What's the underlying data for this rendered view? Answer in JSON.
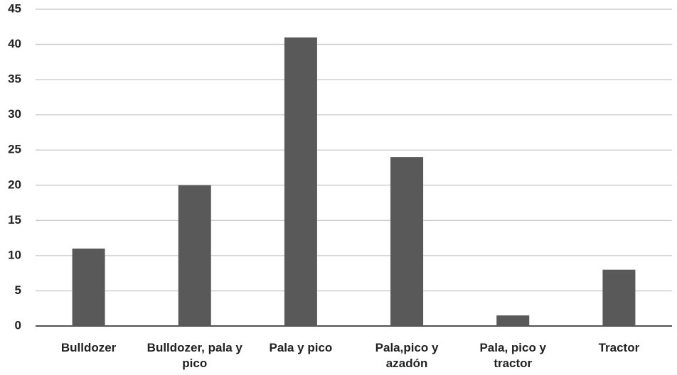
{
  "chart_data": {
    "type": "bar",
    "categories": [
      "Bulldozer",
      "Bulldozer, pala y pico",
      "Pala y pico",
      "Pala,pico y azadón",
      "Pala, pico y tractor",
      "Tractor"
    ],
    "values": [
      11,
      20,
      41,
      24,
      1.5,
      8
    ],
    "color": "#595959",
    "ylim": [
      0,
      45
    ],
    "yticks": [
      0,
      5,
      10,
      15,
      20,
      25,
      30,
      35,
      40,
      45
    ],
    "grid": true
  }
}
